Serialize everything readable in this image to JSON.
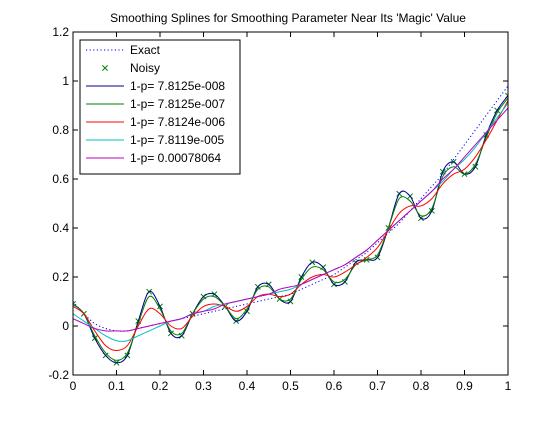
{
  "chart_data": {
    "type": "line",
    "title": "Smoothing Splines for Smoothing Parameter Near Its 'Magic' Value",
    "xlabel": "",
    "ylabel": "",
    "xlim": [
      0,
      1
    ],
    "ylim": [
      -0.2,
      1.2
    ],
    "xticks": [
      0,
      0.1,
      0.2,
      0.3,
      0.4,
      0.5,
      0.6,
      0.7,
      0.8,
      0.9,
      1
    ],
    "xtick_labels": [
      "0",
      "0.1",
      "0.2",
      "0.3",
      "0.4",
      "0.5",
      "0.6",
      "0.7",
      "0.8",
      "0.9",
      "1"
    ],
    "yticks": [
      -0.2,
      0,
      0.2,
      0.4,
      0.6,
      0.8,
      1,
      1.2
    ],
    "ytick_labels": [
      "-0.2",
      "0",
      "0.2",
      "0.4",
      "0.6",
      "0.8",
      "1",
      "1.2"
    ],
    "grid": false,
    "legend_position": "top-left",
    "x": [
      0,
      0.025,
      0.05,
      0.075,
      0.1,
      0.125,
      0.15,
      0.175,
      0.2,
      0.225,
      0.25,
      0.275,
      0.3,
      0.325,
      0.35,
      0.375,
      0.4,
      0.425,
      0.45,
      0.475,
      0.5,
      0.525,
      0.55,
      0.575,
      0.6,
      0.625,
      0.65,
      0.675,
      0.7,
      0.725,
      0.75,
      0.775,
      0.8,
      0.825,
      0.85,
      0.875,
      0.9,
      0.925,
      0.95,
      0.975,
      1
    ],
    "series": [
      {
        "name": "Exact",
        "style": "dotted",
        "color": "#0000ff",
        "values": [
          0.1,
          0.05,
          0.01,
          -0.01,
          -0.02,
          -0.02,
          -0.01,
          0.0,
          0.01,
          0.02,
          0.03,
          0.04,
          0.05,
          0.06,
          0.07,
          0.08,
          0.09,
          0.1,
          0.11,
          0.12,
          0.13,
          0.15,
          0.17,
          0.19,
          0.21,
          0.24,
          0.27,
          0.3,
          0.34,
          0.38,
          0.42,
          0.47,
          0.52,
          0.57,
          0.62,
          0.68,
          0.74,
          0.8,
          0.86,
          0.92,
          0.98
        ]
      },
      {
        "name": "Noisy",
        "style": "x-markers",
        "color": "#008000",
        "values": [
          0.09,
          0.05,
          -0.05,
          -0.12,
          -0.15,
          -0.12,
          0.02,
          0.14,
          0.08,
          -0.03,
          -0.04,
          0.05,
          0.12,
          0.13,
          0.08,
          0.02,
          0.06,
          0.16,
          0.17,
          0.11,
          0.1,
          0.2,
          0.26,
          0.24,
          0.17,
          0.18,
          0.26,
          0.27,
          0.28,
          0.4,
          0.54,
          0.53,
          0.44,
          0.47,
          0.63,
          0.67,
          0.62,
          0.65,
          0.78,
          0.88,
          0.94
        ]
      },
      {
        "name": "1-p= 7.8125e-008",
        "style": "solid",
        "color": "#00008b",
        "values": [
          0.09,
          0.05,
          -0.05,
          -0.12,
          -0.15,
          -0.12,
          0.02,
          0.14,
          0.08,
          -0.03,
          -0.04,
          0.05,
          0.12,
          0.13,
          0.08,
          0.02,
          0.06,
          0.16,
          0.17,
          0.11,
          0.1,
          0.2,
          0.26,
          0.24,
          0.17,
          0.18,
          0.26,
          0.27,
          0.28,
          0.4,
          0.54,
          0.53,
          0.44,
          0.47,
          0.63,
          0.67,
          0.62,
          0.65,
          0.78,
          0.88,
          0.94
        ]
      },
      {
        "name": "1-p= 7.8125e-007",
        "style": "solid",
        "color": "#008000",
        "values": [
          0.09,
          0.05,
          -0.04,
          -0.11,
          -0.14,
          -0.11,
          0.01,
          0.12,
          0.07,
          -0.02,
          -0.03,
          0.05,
          0.11,
          0.12,
          0.08,
          0.03,
          0.07,
          0.15,
          0.16,
          0.11,
          0.11,
          0.19,
          0.24,
          0.23,
          0.18,
          0.19,
          0.25,
          0.27,
          0.29,
          0.4,
          0.52,
          0.51,
          0.45,
          0.48,
          0.61,
          0.65,
          0.62,
          0.66,
          0.77,
          0.87,
          0.93
        ]
      },
      {
        "name": "1-p= 7.8124e-006",
        "style": "solid",
        "color": "#ff0000",
        "values": [
          0.08,
          0.05,
          -0.02,
          -0.08,
          -0.1,
          -0.08,
          0.0,
          0.07,
          0.05,
          0.0,
          -0.01,
          0.04,
          0.08,
          0.09,
          0.08,
          0.06,
          0.08,
          0.12,
          0.13,
          0.12,
          0.13,
          0.17,
          0.2,
          0.21,
          0.2,
          0.22,
          0.25,
          0.28,
          0.32,
          0.39,
          0.46,
          0.49,
          0.49,
          0.52,
          0.58,
          0.62,
          0.64,
          0.69,
          0.76,
          0.84,
          0.92
        ]
      },
      {
        "name": "1-p= 7.8119e-005",
        "style": "solid",
        "color": "#00bfbf",
        "values": [
          0.05,
          0.02,
          -0.01,
          -0.04,
          -0.06,
          -0.06,
          -0.04,
          -0.02,
          0.0,
          0.02,
          0.03,
          0.05,
          0.06,
          0.08,
          0.09,
          0.1,
          0.11,
          0.12,
          0.13,
          0.14,
          0.15,
          0.17,
          0.19,
          0.21,
          0.23,
          0.25,
          0.28,
          0.31,
          0.35,
          0.39,
          0.43,
          0.47,
          0.51,
          0.55,
          0.59,
          0.64,
          0.68,
          0.73,
          0.79,
          0.85,
          0.91
        ]
      },
      {
        "name": "1-p= 0.00078064",
        "style": "solid",
        "color": "#bf00bf",
        "values": [
          0.03,
          0.01,
          -0.01,
          -0.02,
          -0.02,
          -0.02,
          -0.01,
          0.0,
          0.01,
          0.02,
          0.03,
          0.05,
          0.06,
          0.07,
          0.09,
          0.1,
          0.11,
          0.12,
          0.13,
          0.15,
          0.16,
          0.17,
          0.19,
          0.21,
          0.23,
          0.25,
          0.28,
          0.31,
          0.35,
          0.39,
          0.43,
          0.47,
          0.51,
          0.55,
          0.6,
          0.64,
          0.69,
          0.74,
          0.79,
          0.84,
          0.89
        ]
      }
    ]
  }
}
